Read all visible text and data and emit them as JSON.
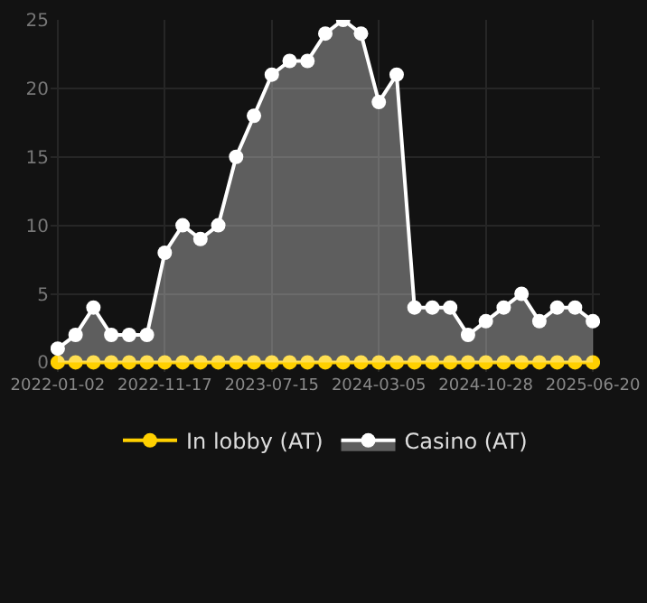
{
  "chart_data": {
    "type": "area",
    "categories": [
      "2022-01-02",
      null,
      null,
      null,
      null,
      null,
      "2022-11-17",
      null,
      null,
      null,
      null,
      null,
      "2023-07-15",
      null,
      null,
      null,
      null,
      null,
      "2024-03-05",
      null,
      null,
      null,
      null,
      null,
      "2024-10-28",
      null,
      null,
      null,
      null,
      null,
      "2025-06-20"
    ],
    "series": [
      {
        "name": "In lobby (AT)",
        "type": "line",
        "color": "#ffd000",
        "values": [
          0,
          0,
          0,
          0,
          0,
          0,
          0,
          0,
          0,
          0,
          0,
          0,
          0,
          0,
          0,
          0,
          0,
          0,
          0,
          0,
          0,
          0,
          0,
          0,
          0,
          0,
          0,
          0,
          0,
          0,
          0
        ]
      },
      {
        "name": "Casino (AT)",
        "color": "#ffffff",
        "values": [
          1,
          2,
          4,
          2,
          2,
          2,
          8,
          10,
          9,
          10,
          15,
          18,
          21,
          22,
          22,
          24,
          25,
          24,
          19,
          21,
          4,
          4,
          4,
          2,
          3,
          4,
          5,
          3,
          4,
          4,
          3
        ]
      }
    ],
    "ylim": [
      0,
      25
    ],
    "yticks": [
      0,
      5,
      10,
      15,
      20,
      25
    ],
    "grid": true,
    "legend": "bottom",
    "marker": "circle",
    "line_style": "solid"
  }
}
